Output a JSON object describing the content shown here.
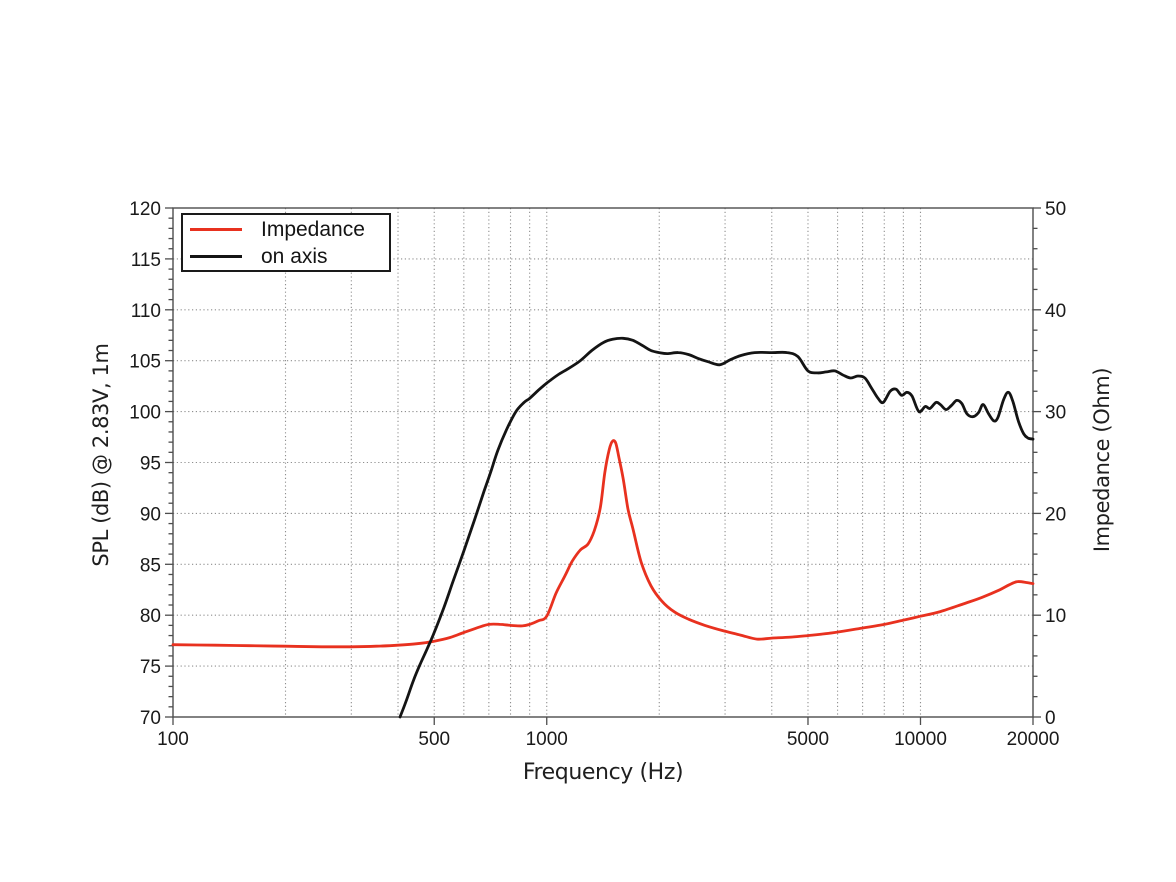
{
  "figure": {
    "background": "#ffffff"
  },
  "axes": {
    "x": {
      "title": "Frequency (Hz)"
    },
    "y_left": {
      "title": "SPL (dB) @ 2.83V, 1m"
    },
    "y_right": {
      "title": "Impedance (Ohm)"
    }
  },
  "legend": {
    "position": "upper-left",
    "entries": [
      {
        "label": "Impedance",
        "color": "#e8311f"
      },
      {
        "label": "on axis",
        "color": "#141414"
      }
    ]
  },
  "chart_data": {
    "type": "line",
    "title": "",
    "xlabel": "Frequency (Hz)",
    "x_scale": "log",
    "x_range": [
      100,
      20000
    ],
    "grid": "dotted",
    "legend_position": "upper left",
    "x_major_ticks": [
      {
        "value": 100,
        "label": "100"
      },
      {
        "value": 500,
        "label": "500"
      },
      {
        "value": 1000,
        "label": "1000"
      },
      {
        "value": 5000,
        "label": "5000"
      },
      {
        "value": 10000,
        "label": "10000"
      },
      {
        "value": 20000,
        "label": "20000"
      }
    ],
    "x_minor_gridlines": [
      200,
      300,
      400,
      500,
      600,
      700,
      800,
      900,
      1000,
      2000,
      3000,
      4000,
      5000,
      6000,
      7000,
      8000,
      9000,
      10000
    ],
    "y_left": {
      "label": "SPL (dB) @ 2.83V, 1m",
      "range": [
        70,
        120
      ],
      "major_step": 5,
      "minor_step": 1,
      "ticks": [
        {
          "value": 70,
          "label": "70"
        },
        {
          "value": 75,
          "label": "75"
        },
        {
          "value": 80,
          "label": "80"
        },
        {
          "value": 85,
          "label": "85"
        },
        {
          "value": 90,
          "label": "90"
        },
        {
          "value": 95,
          "label": "95"
        },
        {
          "value": 100,
          "label": "100"
        },
        {
          "value": 105,
          "label": "105"
        },
        {
          "value": 110,
          "label": "110"
        },
        {
          "value": 115,
          "label": "115"
        },
        {
          "value": 120,
          "label": "120"
        }
      ]
    },
    "y_right": {
      "label": "Impedance (Ohm)",
      "range": [
        0,
        50
      ],
      "major_step": 10,
      "minor_step": 2,
      "ticks": [
        {
          "value": 0,
          "label": "0"
        },
        {
          "value": 10,
          "label": "10"
        },
        {
          "value": 20,
          "label": "20"
        },
        {
          "value": 30,
          "label": "30"
        },
        {
          "value": 40,
          "label": "40"
        },
        {
          "value": 50,
          "label": "50"
        }
      ]
    },
    "series": [
      {
        "name": "Impedance",
        "axis": "right",
        "unit": "Ohm",
        "color": "#e8311f",
        "points": [
          [
            100,
            7.1
          ],
          [
            130,
            7.05
          ],
          [
            160,
            7.0
          ],
          [
            200,
            6.95
          ],
          [
            250,
            6.9
          ],
          [
            300,
            6.9
          ],
          [
            350,
            6.95
          ],
          [
            400,
            7.05
          ],
          [
            450,
            7.2
          ],
          [
            500,
            7.45
          ],
          [
            550,
            7.8
          ],
          [
            600,
            8.3
          ],
          [
            650,
            8.75
          ],
          [
            700,
            9.1
          ],
          [
            750,
            9.1
          ],
          [
            800,
            9.0
          ],
          [
            860,
            8.95
          ],
          [
            900,
            9.1
          ],
          [
            950,
            9.45
          ],
          [
            1000,
            9.9
          ],
          [
            1060,
            12.2
          ],
          [
            1120,
            13.9
          ],
          [
            1170,
            15.3
          ],
          [
            1230,
            16.4
          ],
          [
            1290,
            17.0
          ],
          [
            1340,
            18.3
          ],
          [
            1390,
            20.5
          ],
          [
            1430,
            24.0
          ],
          [
            1470,
            26.3
          ],
          [
            1500,
            27.1
          ],
          [
            1530,
            26.9
          ],
          [
            1560,
            25.5
          ],
          [
            1600,
            23.5
          ],
          [
            1650,
            20.4
          ],
          [
            1700,
            18.5
          ],
          [
            1790,
            15.2
          ],
          [
            1900,
            12.9
          ],
          [
            2030,
            11.4
          ],
          [
            2200,
            10.3
          ],
          [
            2400,
            9.6
          ],
          [
            2650,
            9.0
          ],
          [
            2950,
            8.5
          ],
          [
            3300,
            8.05
          ],
          [
            3650,
            7.65
          ],
          [
            4000,
            7.75
          ],
          [
            4500,
            7.85
          ],
          [
            5000,
            8.0
          ],
          [
            5900,
            8.3
          ],
          [
            6900,
            8.7
          ],
          [
            8000,
            9.1
          ],
          [
            9100,
            9.55
          ],
          [
            10000,
            9.9
          ],
          [
            11300,
            10.35
          ],
          [
            13000,
            11.1
          ],
          [
            14600,
            11.75
          ],
          [
            16300,
            12.5
          ],
          [
            17300,
            13.0
          ],
          [
            18200,
            13.3
          ],
          [
            19300,
            13.2
          ],
          [
            20000,
            13.1
          ]
        ]
      },
      {
        "name": "on axis",
        "axis": "left",
        "unit": "dB SPL",
        "color": "#141414",
        "points": [
          [
            405,
            70.0
          ],
          [
            420,
            71.5
          ],
          [
            440,
            73.6
          ],
          [
            460,
            75.3
          ],
          [
            480,
            76.8
          ],
          [
            500,
            78.3
          ],
          [
            530,
            80.7
          ],
          [
            560,
            83.2
          ],
          [
            600,
            86.3
          ],
          [
            640,
            89.3
          ],
          [
            680,
            92.2
          ],
          [
            710,
            94.2
          ],
          [
            740,
            96.2
          ],
          [
            780,
            98.2
          ],
          [
            827,
            100.0
          ],
          [
            870,
            100.9
          ],
          [
            900,
            101.3
          ],
          [
            950,
            102.1
          ],
          [
            1000,
            102.8
          ],
          [
            1070,
            103.6
          ],
          [
            1140,
            104.2
          ],
          [
            1230,
            105.0
          ],
          [
            1320,
            106.0
          ],
          [
            1420,
            106.8
          ],
          [
            1500,
            107.1
          ],
          [
            1600,
            107.2
          ],
          [
            1700,
            107.0
          ],
          [
            1800,
            106.5
          ],
          [
            1900,
            106.0
          ],
          [
            2000,
            105.8
          ],
          [
            2100,
            105.7
          ],
          [
            2250,
            105.8
          ],
          [
            2400,
            105.6
          ],
          [
            2550,
            105.2
          ],
          [
            2700,
            104.9
          ],
          [
            2900,
            104.6
          ],
          [
            3100,
            105.1
          ],
          [
            3300,
            105.5
          ],
          [
            3600,
            105.8
          ],
          [
            4000,
            105.8
          ],
          [
            4400,
            105.8
          ],
          [
            4700,
            105.4
          ],
          [
            5000,
            104.0
          ],
          [
            5300,
            103.8
          ],
          [
            5600,
            103.9
          ],
          [
            5900,
            104.0
          ],
          [
            6200,
            103.6
          ],
          [
            6500,
            103.3
          ],
          [
            6800,
            103.5
          ],
          [
            7100,
            103.3
          ],
          [
            7400,
            102.3
          ],
          [
            7700,
            101.3
          ],
          [
            7950,
            100.9
          ],
          [
            8300,
            102.0
          ],
          [
            8600,
            102.2
          ],
          [
            8900,
            101.6
          ],
          [
            9200,
            101.9
          ],
          [
            9500,
            101.5
          ],
          [
            9900,
            100.0
          ],
          [
            10300,
            100.5
          ],
          [
            10600,
            100.3
          ],
          [
            11000,
            100.9
          ],
          [
            11300,
            100.7
          ],
          [
            11700,
            100.2
          ],
          [
            12100,
            100.6
          ],
          [
            12500,
            101.1
          ],
          [
            12900,
            100.8
          ],
          [
            13300,
            99.8
          ],
          [
            13800,
            99.5
          ],
          [
            14300,
            99.9
          ],
          [
            14700,
            100.7
          ],
          [
            15200,
            99.8
          ],
          [
            15700,
            99.1
          ],
          [
            16100,
            99.4
          ],
          [
            16700,
            101.2
          ],
          [
            17200,
            101.9
          ],
          [
            17700,
            100.9
          ],
          [
            18300,
            99.0
          ],
          [
            18900,
            97.8
          ],
          [
            19400,
            97.4
          ],
          [
            20000,
            97.3
          ]
        ]
      }
    ]
  }
}
